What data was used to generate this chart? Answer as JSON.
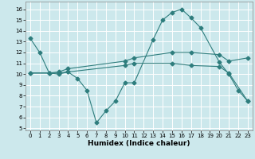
{
  "xlabel": "Humidex (Indice chaleur)",
  "bg_color": "#cce8ec",
  "grid_color": "#ffffff",
  "line_color": "#2e7d7d",
  "xlim": [
    -0.5,
    23.5
  ],
  "ylim": [
    4.8,
    16.7
  ],
  "xticks": [
    0,
    1,
    2,
    3,
    4,
    5,
    6,
    7,
    8,
    9,
    10,
    11,
    12,
    13,
    14,
    15,
    16,
    17,
    18,
    19,
    20,
    21,
    22,
    23
  ],
  "yticks": [
    5,
    6,
    7,
    8,
    9,
    10,
    11,
    12,
    13,
    14,
    15,
    16
  ],
  "line1_x": [
    0,
    1,
    2,
    3,
    4,
    5,
    6,
    7,
    8,
    9,
    10,
    11,
    13,
    14,
    15,
    16,
    17,
    18,
    20,
    21,
    22,
    23
  ],
  "line1_y": [
    13.3,
    12.0,
    10.1,
    10.1,
    10.2,
    9.6,
    8.5,
    5.5,
    6.6,
    7.5,
    9.2,
    9.2,
    13.2,
    15.0,
    15.7,
    16.0,
    15.2,
    14.3,
    11.1,
    10.0,
    8.5,
    7.5
  ],
  "line2_x": [
    0,
    2,
    3,
    4,
    10,
    11,
    15,
    17,
    20,
    21,
    23
  ],
  "line2_y": [
    10.1,
    10.1,
    10.2,
    10.5,
    11.2,
    11.5,
    12.0,
    12.0,
    11.8,
    11.2,
    11.5
  ],
  "line3_x": [
    0,
    2,
    3,
    4,
    10,
    11,
    15,
    17,
    20,
    21,
    23
  ],
  "line3_y": [
    10.1,
    10.1,
    10.0,
    10.2,
    10.8,
    11.0,
    11.0,
    10.8,
    10.7,
    10.1,
    7.5
  ],
  "markersize": 2.5
}
